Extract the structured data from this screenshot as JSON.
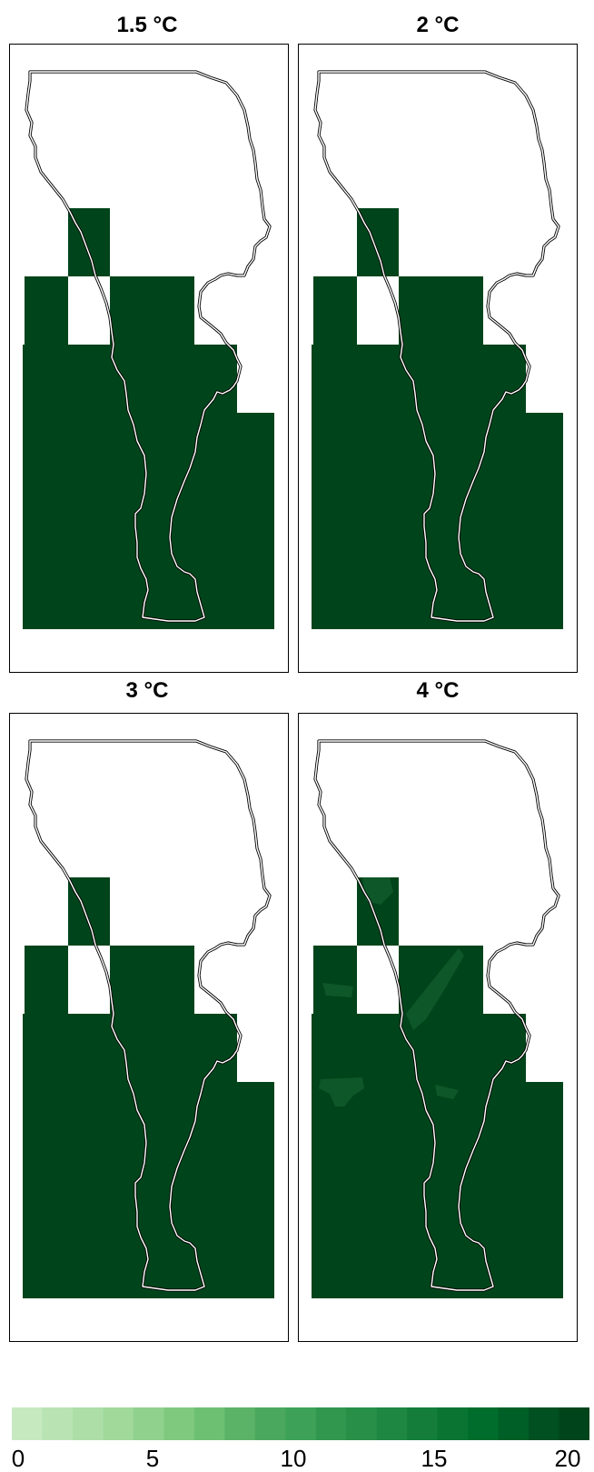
{
  "panels": [
    {
      "title": "1.5 °C",
      "has_variation": false
    },
    {
      "title": "2 °C",
      "has_variation": false
    },
    {
      "title": "3 °C",
      "has_variation": false
    },
    {
      "title": "4 °C",
      "has_variation": true
    }
  ],
  "legend": {
    "min": 0,
    "max": 20,
    "tick_labels": [
      "0",
      "5",
      "10",
      "15",
      "20"
    ],
    "colors": [
      "#c7e9c0",
      "#bae3b4",
      "#addea8",
      "#a1d99b",
      "#90d18d",
      "#7fc97f",
      "#6dc072",
      "#5bb367",
      "#4aa85e",
      "#3da258",
      "#31974f",
      "#278f48",
      "#1e8741",
      "#137d39",
      "#0a7533",
      "#006d2c",
      "#005f27",
      "#005021",
      "#00441b"
    ]
  },
  "colors": {
    "cell_fill": "#00441b",
    "cell_variation": "#0f5a2a",
    "outline_outer": "#000000",
    "outline_inner": "#ffffff"
  }
}
